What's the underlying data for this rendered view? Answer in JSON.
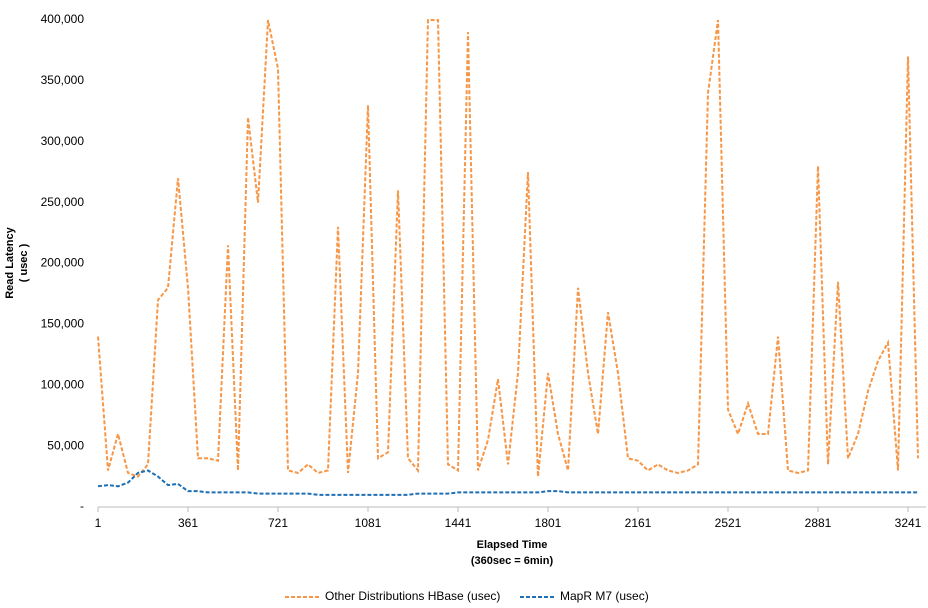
{
  "chart_data": {
    "type": "line",
    "xlabel": [
      "Elapsed Time",
      "(360sec = 6min)"
    ],
    "ylabel": [
      "Read Latency",
      "( usec )"
    ],
    "x": [
      1,
      41,
      81,
      121,
      161,
      201,
      241,
      281,
      321,
      361,
      401,
      441,
      481,
      521,
      561,
      601,
      641,
      681,
      721,
      761,
      801,
      841,
      881,
      921,
      961,
      1001,
      1041,
      1081,
      1121,
      1161,
      1201,
      1241,
      1281,
      1321,
      1361,
      1401,
      1441,
      1481,
      1521,
      1561,
      1601,
      1641,
      1681,
      1721,
      1761,
      1801,
      1841,
      1881,
      1921,
      1961,
      2001,
      2041,
      2081,
      2121,
      2161,
      2201,
      2241,
      2281,
      2321,
      2361,
      2401,
      2441,
      2481,
      2521,
      2561,
      2601,
      2641,
      2681,
      2721,
      2761,
      2801,
      2841,
      2881,
      2921,
      2961,
      3001,
      3041,
      3081,
      3121,
      3161,
      3201,
      3241,
      3281
    ],
    "series": [
      {
        "name": "Other Distributions HBase (usec)",
        "color": "#f79646",
        "values": [
          140000,
          30000,
          60000,
          28000,
          25000,
          35000,
          170000,
          180000,
          270000,
          180000,
          40000,
          40000,
          38000,
          215000,
          30000,
          320000,
          250000,
          400000,
          360000,
          30000,
          28000,
          35000,
          28000,
          30000,
          230000,
          28000,
          110000,
          330000,
          40000,
          45000,
          260000,
          40000,
          30000,
          400000,
          400000,
          35000,
          30000,
          390000,
          30000,
          55000,
          105000,
          35000,
          110000,
          275000,
          25000,
          110000,
          60000,
          30000,
          180000,
          110000,
          60000,
          160000,
          110000,
          40000,
          38000,
          30000,
          35000,
          30000,
          28000,
          30000,
          35000,
          340000,
          400000,
          80000,
          60000,
          85000,
          60000,
          60000,
          140000,
          30000,
          28000,
          30000,
          280000,
          35000,
          185000,
          40000,
          60000,
          95000,
          120000,
          135000,
          30000,
          370000,
          40000
        ]
      },
      {
        "name": "MapR M7 (usec)",
        "color": "#1f6fb4",
        "values": [
          17000,
          18000,
          17000,
          20000,
          28000,
          30000,
          25000,
          18000,
          19000,
          13000,
          13000,
          12000,
          12000,
          12000,
          12000,
          12000,
          11000,
          11000,
          11000,
          11000,
          11000,
          11000,
          10000,
          10000,
          10000,
          10000,
          10000,
          10000,
          10000,
          10000,
          10000,
          10000,
          11000,
          11000,
          11000,
          11000,
          12000,
          12000,
          12000,
          12000,
          12000,
          12000,
          12000,
          12000,
          12000,
          13000,
          13000,
          12000,
          12000,
          12000,
          12000,
          12000,
          12000,
          12000,
          12000,
          12000,
          12000,
          12000,
          12000,
          12000,
          12000,
          12000,
          12000,
          12000,
          12000,
          12000,
          12000,
          12000,
          12000,
          12000,
          12000,
          12000,
          12000,
          12000,
          12000,
          12000,
          12000,
          12000,
          12000,
          12000,
          12000,
          12000,
          12000
        ]
      }
    ],
    "xlim": [
      1,
      3313
    ],
    "xticks": [
      1,
      361,
      721,
      1081,
      1441,
      1801,
      2161,
      2521,
      2881,
      3241
    ],
    "ylim": [
      0,
      400000
    ],
    "yticks": [
      {
        "value": 0,
        "label": "-"
      },
      {
        "value": 50000,
        "label": "50,000"
      },
      {
        "value": 100000,
        "label": "100,000"
      },
      {
        "value": 150000,
        "label": "150,000"
      },
      {
        "value": 200000,
        "label": "200,000"
      },
      {
        "value": 250000,
        "label": "250,000"
      },
      {
        "value": 300000,
        "label": "300,000"
      },
      {
        "value": 350000,
        "label": "350,000"
      },
      {
        "value": 400000,
        "label": "400,000"
      }
    ],
    "grid": false,
    "legend": "bottom"
  }
}
